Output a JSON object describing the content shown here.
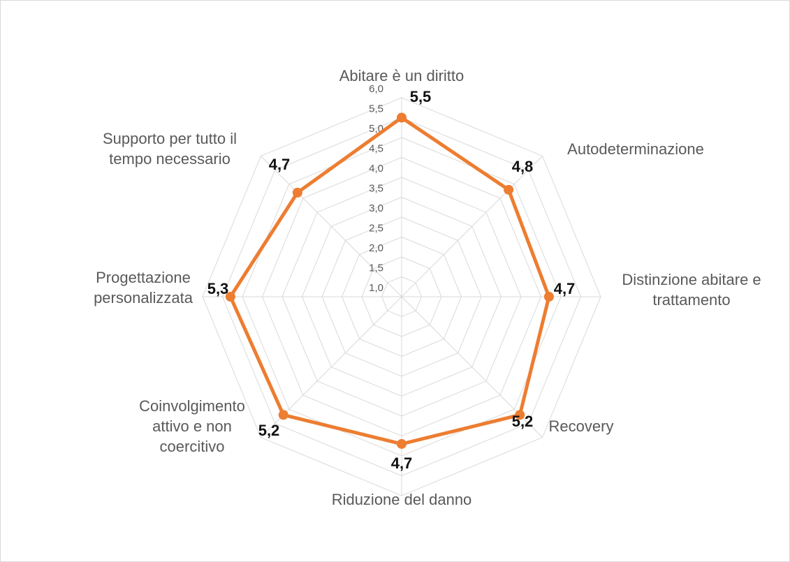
{
  "chart_data": {
    "type": "radar",
    "categories": [
      "Abitare è un diritto",
      "Autodeterminazione",
      "Distinzione abitare e trattamento",
      "Recovery",
      "Riduzione del danno",
      "Coinvolgimento attivo e non coercitivo",
      "Progettazione personalizzata",
      "Supporto per tutto il tempo necessario"
    ],
    "series": [
      {
        "color": "#ED7D31",
        "values": [
          5.5,
          4.8,
          4.7,
          5.2,
          4.7,
          5.2,
          5.3,
          4.7
        ],
        "value_labels": [
          "5,5",
          "4,8",
          "4,7",
          "5,2",
          "4,7",
          "5,2",
          "5,3",
          "4,7"
        ]
      }
    ],
    "ylim": [
      1,
      6
    ],
    "yticks": [
      {
        "value": 1,
        "label": "1,0"
      },
      {
        "value": 1.5,
        "label": "1,5"
      },
      {
        "value": 2,
        "label": "2,0"
      },
      {
        "value": 2.5,
        "label": "2,5"
      },
      {
        "value": 3,
        "label": "3,0"
      },
      {
        "value": 3.5,
        "label": "3,5"
      },
      {
        "value": 4,
        "label": "4,0"
      },
      {
        "value": 4.5,
        "label": "4,5"
      },
      {
        "value": 5,
        "label": "5,0"
      },
      {
        "value": 5.5,
        "label": "5,5"
      },
      {
        "value": 6,
        "label": "6,0"
      }
    ],
    "grid": true
  }
}
